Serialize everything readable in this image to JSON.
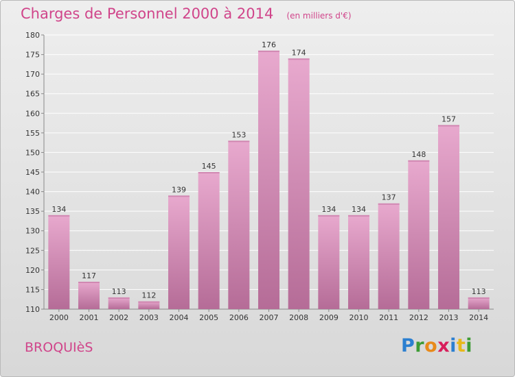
{
  "header": {
    "title": "Charges de Personnel 2000 à 2014",
    "unit": "(en milliers d'€)"
  },
  "footer": {
    "commune": "BROQUIèS",
    "brand": [
      "P",
      "r",
      "o",
      "x",
      "i",
      "t",
      "i"
    ],
    "brand_colors": [
      "#2b7fd0",
      "#3d9b34",
      "#e88a1a",
      "#d81e5b",
      "#2b7fd0",
      "#e8b81a",
      "#3d9b34"
    ]
  },
  "colors": {
    "bar_top": "#e8a9ce",
    "bar_bottom": "#b56c97",
    "label": "#333333"
  },
  "chart_data": {
    "type": "bar",
    "title": "Charges de Personnel 2000 à 2014",
    "unit": "(en milliers d'€)",
    "categories": [
      "2000",
      "2001",
      "2002",
      "2003",
      "2004",
      "2005",
      "2006",
      "2007",
      "2008",
      "2009",
      "2010",
      "2011",
      "2012",
      "2013",
      "2014"
    ],
    "values": [
      134,
      117,
      113,
      112,
      139,
      145,
      153,
      176,
      174,
      134,
      134,
      137,
      148,
      157,
      113
    ],
    "ylim": [
      110,
      180
    ],
    "yticks": [
      110,
      115,
      120,
      125,
      130,
      135,
      140,
      145,
      150,
      155,
      160,
      165,
      170,
      175,
      180
    ],
    "grid": true
  }
}
